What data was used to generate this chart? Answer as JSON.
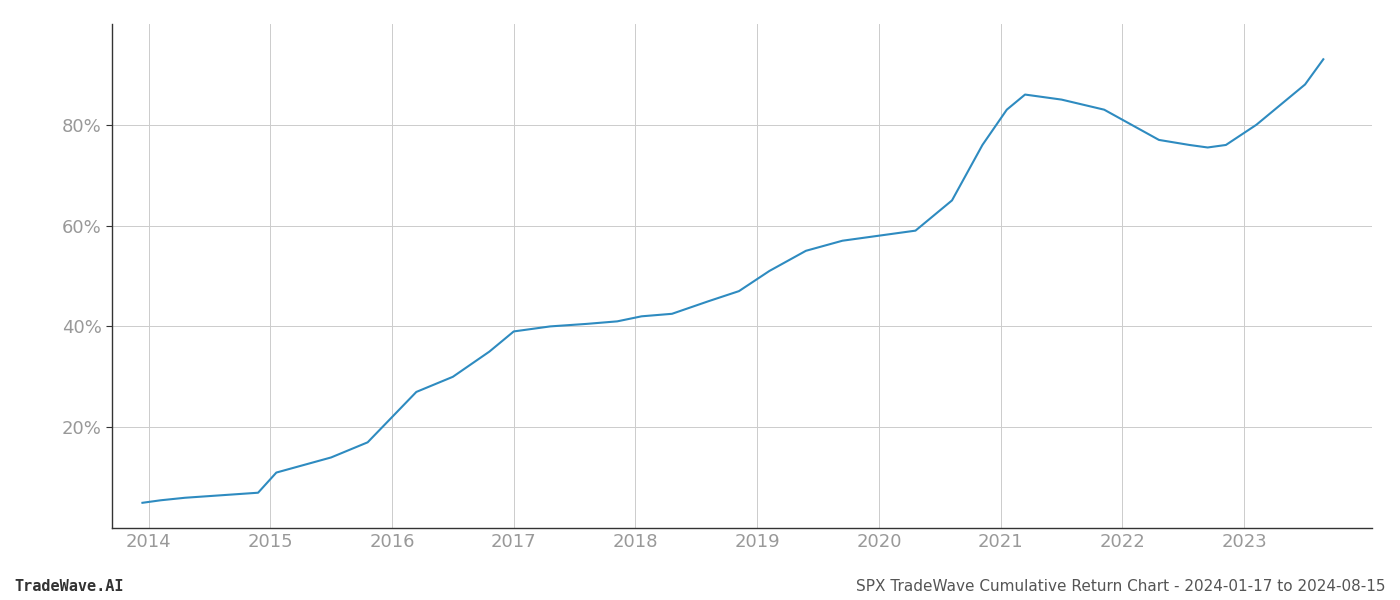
{
  "title": "SPX TradeWave Cumulative Return Chart - 2024-01-17 to 2024-08-15",
  "watermark": "TradeWave.AI",
  "line_color": "#2e8bc0",
  "background_color": "#ffffff",
  "grid_color": "#cccccc",
  "x_years": [
    2013.95,
    2014.1,
    2014.3,
    2014.6,
    2014.9,
    2015.05,
    2015.2,
    2015.5,
    2015.8,
    2016.0,
    2016.2,
    2016.5,
    2016.8,
    2017.0,
    2017.3,
    2017.6,
    2017.85,
    2018.05,
    2018.3,
    2018.6,
    2018.85,
    2019.1,
    2019.4,
    2019.7,
    2019.85,
    2020.0,
    2020.15,
    2020.3,
    2020.6,
    2020.85,
    2021.05,
    2021.2,
    2021.5,
    2021.85,
    2022.0,
    2022.3,
    2022.55,
    2022.7,
    2022.85,
    2023.1,
    2023.5,
    2023.65
  ],
  "y_values": [
    5,
    5.5,
    6,
    6.5,
    7,
    11,
    12,
    14,
    17,
    22,
    27,
    30,
    35,
    39,
    40,
    40.5,
    41,
    42,
    42.5,
    45,
    47,
    51,
    55,
    57,
    57.5,
    58,
    58.5,
    59,
    65,
    76,
    83,
    86,
    85,
    83,
    81,
    77,
    76,
    75.5,
    76,
    80,
    88,
    93
  ],
  "xlim": [
    2013.7,
    2024.05
  ],
  "ylim": [
    0,
    100
  ],
  "yticks": [
    20,
    40,
    60,
    80
  ],
  "xticks": [
    2014,
    2015,
    2016,
    2017,
    2018,
    2019,
    2020,
    2021,
    2022,
    2023
  ],
  "tick_color": "#999999",
  "spine_color": "#333333",
  "title_fontsize": 11,
  "watermark_fontsize": 11,
  "tick_fontsize": 13,
  "line_width": 1.5
}
